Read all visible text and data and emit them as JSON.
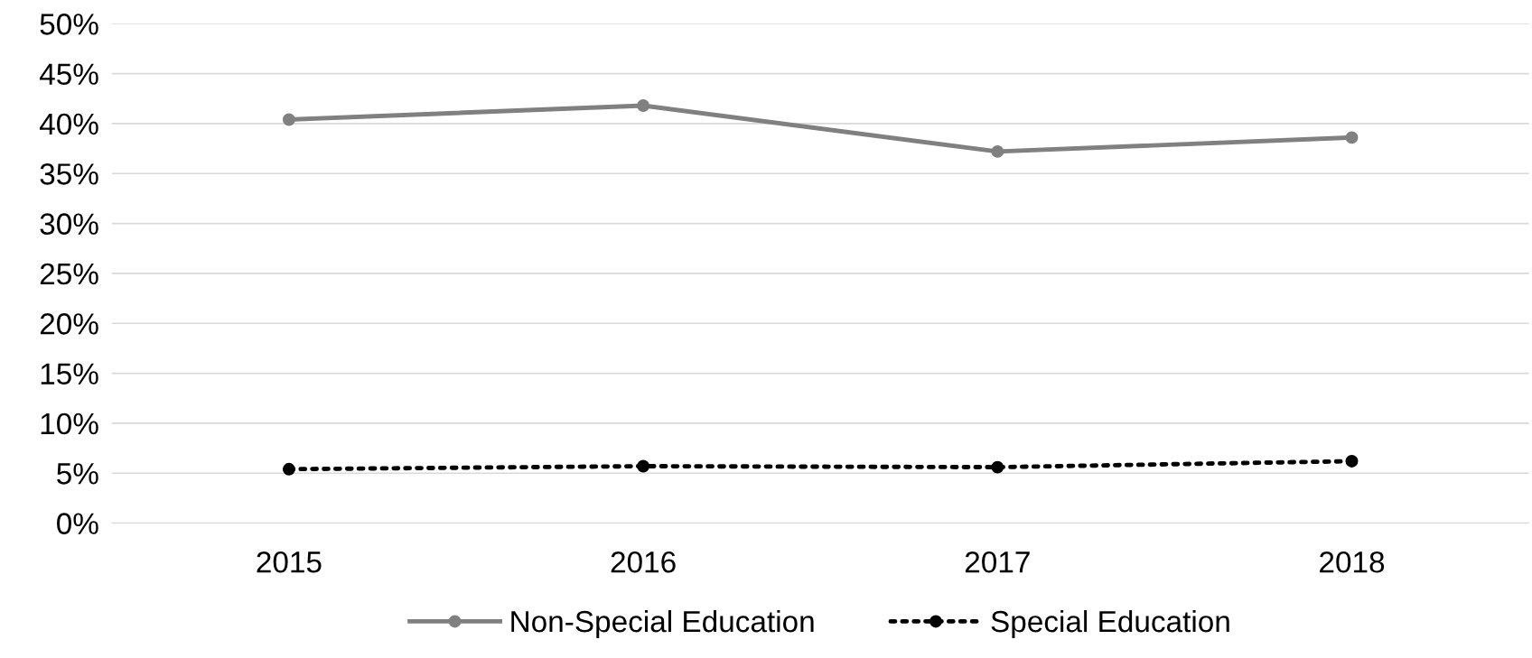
{
  "chart_data": {
    "type": "line",
    "categories": [
      "2015",
      "2016",
      "2017",
      "2018"
    ],
    "series": [
      {
        "name": "Non-Special Education",
        "color": "#808080",
        "values": [
          40.4,
          41.8,
          37.2,
          38.6
        ],
        "line_style": "solid"
      },
      {
        "name": "Special Education",
        "color": "#000000",
        "values": [
          5.4,
          5.7,
          5.6,
          6.2
        ],
        "line_style": "dotted"
      }
    ],
    "ylim": [
      0,
      50
    ],
    "yticks": [
      {
        "value": 0,
        "label": "0%"
      },
      {
        "value": 5,
        "label": "5%"
      },
      {
        "value": 10,
        "label": "10%"
      },
      {
        "value": 15,
        "label": "15%"
      },
      {
        "value": 20,
        "label": "20%"
      },
      {
        "value": 25,
        "label": "25%"
      },
      {
        "value": 30,
        "label": "30%"
      },
      {
        "value": 35,
        "label": "35%"
      },
      {
        "value": 40,
        "label": "40%"
      },
      {
        "value": 45,
        "label": "45%"
      },
      {
        "value": 50,
        "label": "50%"
      }
    ],
    "grid": "y",
    "legend": "bottom",
    "marker": "circle"
  }
}
